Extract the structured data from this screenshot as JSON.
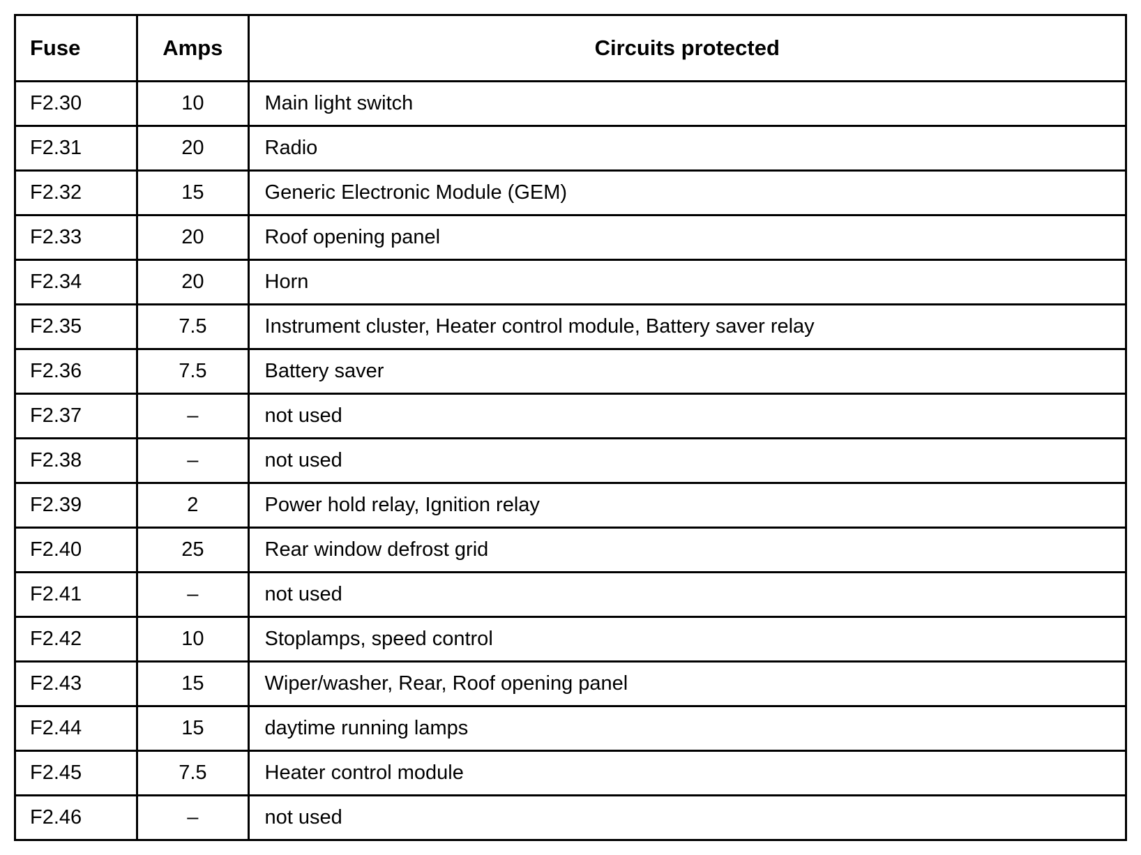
{
  "table": {
    "type": "table",
    "columns": [
      "Fuse",
      "Amps",
      "Circuits protected"
    ],
    "column_widths_pct": [
      11,
      10,
      79
    ],
    "column_align": [
      "left",
      "center",
      "left"
    ],
    "header_align": [
      "left",
      "center",
      "center"
    ],
    "header_fontsize": 31,
    "header_fontweight": "bold",
    "header_padding_v": 28,
    "body_fontsize": 29,
    "body_padding_v": 14,
    "border_color": "#000000",
    "border_width": 3,
    "background_color": "#ffffff",
    "text_color": "#000000",
    "rows": [
      [
        "F2.30",
        "10",
        "Main light switch"
      ],
      [
        "F2.31",
        "20",
        "Radio"
      ],
      [
        "F2.32",
        "15",
        "Generic Electronic Module (GEM)"
      ],
      [
        "F2.33",
        "20",
        " Roof opening panel"
      ],
      [
        "F2.34",
        "20",
        " Horn"
      ],
      [
        "F2.35",
        "7.5",
        "Instrument cluster, Heater control module, Battery saver relay"
      ],
      [
        "F2.36",
        "7.5",
        "Battery saver"
      ],
      [
        "F2.37",
        "–",
        "not used"
      ],
      [
        "F2.38",
        "–",
        "not used"
      ],
      [
        "F2.39",
        "2",
        "Power hold relay, Ignition relay"
      ],
      [
        "F2.40",
        "25",
        "Rear window defrost grid"
      ],
      [
        "F2.41",
        "–",
        "not used"
      ],
      [
        "F2.42",
        "10",
        "Stoplamps, speed control"
      ],
      [
        "F2.43",
        "15",
        "Wiper/washer, Rear, Roof opening panel"
      ],
      [
        "F2.44",
        "15",
        "daytime running lamps"
      ],
      [
        "F2.45",
        "7.5",
        "Heater control module"
      ],
      [
        "F2.46",
        "–",
        "not used"
      ]
    ]
  }
}
